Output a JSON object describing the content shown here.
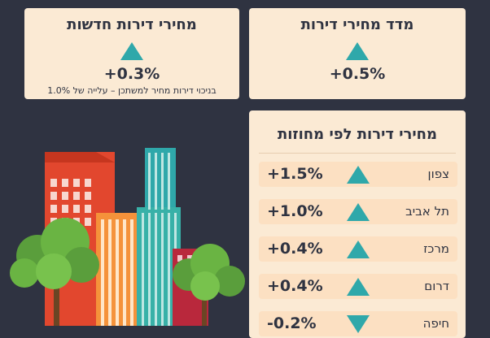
{
  "new_apartments": {
    "title": "מחירי דירות חדשות",
    "value": "+0.3%",
    "direction": "up",
    "note": "בניכוי דירות מחיר למשתכן – עלייה של 1.0%"
  },
  "price_index": {
    "title": "מדד מחירי דירות",
    "value": "+0.5%",
    "direction": "up"
  },
  "districts": {
    "title": "מחירי דירות לפי מחוזות",
    "rows": [
      {
        "name": "צפון",
        "value": "+1.5%",
        "direction": "up"
      },
      {
        "name": "תל אביב",
        "value": "+1.0%",
        "direction": "up"
      },
      {
        "name": "מרכז",
        "value": "+0.4%",
        "direction": "up"
      },
      {
        "name": "דרום",
        "value": "+0.4%",
        "direction": "up"
      },
      {
        "name": "חיפה",
        "value": "-0.2%",
        "direction": "down"
      }
    ]
  },
  "colors": {
    "background": "#2f3341",
    "card": "#fbead4",
    "row": "#fce0c2",
    "accent": "#2fa8aa"
  }
}
